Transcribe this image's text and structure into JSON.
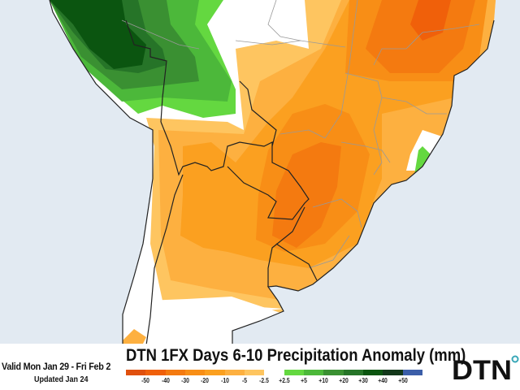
{
  "title": "DTN 1FX Days 6-10 Precipitation Anomaly (mm)",
  "valid": "Valid Mon Jan 29 - Fri Feb 2",
  "updated": "Updated Jan 24",
  "logo": "DTN",
  "legend": {
    "unit": "mm",
    "colors": [
      "#e0500e",
      "#f0600a",
      "#f47a10",
      "#f88e16",
      "#fba020",
      "#fdb040",
      "#fec560",
      "#ffffff",
      "#64d840",
      "#4cb83a",
      "#3a9032",
      "#267428",
      "#0b5510",
      "#13381a",
      "#3b5ea8"
    ],
    "ticks": [
      "-50",
      "-40",
      "-30",
      "-20",
      "-10",
      "-5",
      "-2.5",
      "+2.5",
      "+5",
      "+10",
      "+20",
      "+30",
      "+40",
      "+50"
    ]
  },
  "map_colors": {
    "ocean": "#e2eaf2",
    "land_neutral": "#ffffff",
    "light_dry": "#fec560",
    "dry_5": "#fdb040",
    "dry_10": "#fba020",
    "dry_20": "#f88e16",
    "dry_30": "#f47a10",
    "dry_40": "#f0600a",
    "dry_50": "#e0500e",
    "wet_2_5": "#64d840",
    "wet_5": "#4cb83a",
    "wet_10": "#3a9032",
    "wet_20": "#267428",
    "wet_40": "#0b5510"
  }
}
